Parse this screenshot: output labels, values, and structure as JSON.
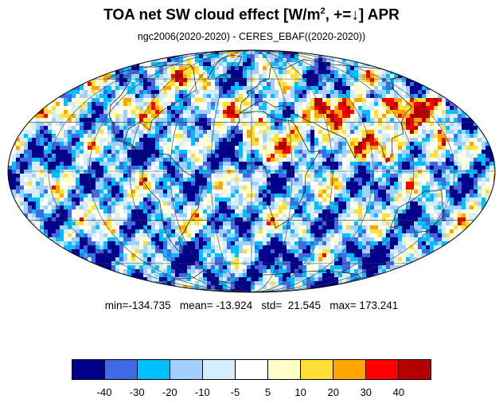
{
  "title": {
    "main": "TOA net SW cloud effect [W/m",
    "sup": "2",
    "suffix": ", +=↓]  APR"
  },
  "subtitle": "ngc2006(2020-2020) - CERES_EBAF((2020-2020))",
  "stats": {
    "text": "min=-134.735   mean= -13.924   std=  21.545   max= 173.241",
    "min": -134.735,
    "mean": -13.924,
    "std": 21.545,
    "max": 173.241
  },
  "map": {
    "projection": "Mollweide",
    "central_longitude": 0,
    "grid": true,
    "coastlines": true
  },
  "colorbar": {
    "colors": [
      "#00008b",
      "#4169e1",
      "#00bfff",
      "#9fd0ff",
      "#d4eeff",
      "#ffffff",
      "#ffffc8",
      "#ffe037",
      "#ffa500",
      "#ff0000",
      "#b40000"
    ],
    "tick_labels": [
      "-40",
      "-30",
      "-20",
      "-10",
      "-5",
      "5",
      "10",
      "20",
      "30",
      "40"
    ]
  }
}
